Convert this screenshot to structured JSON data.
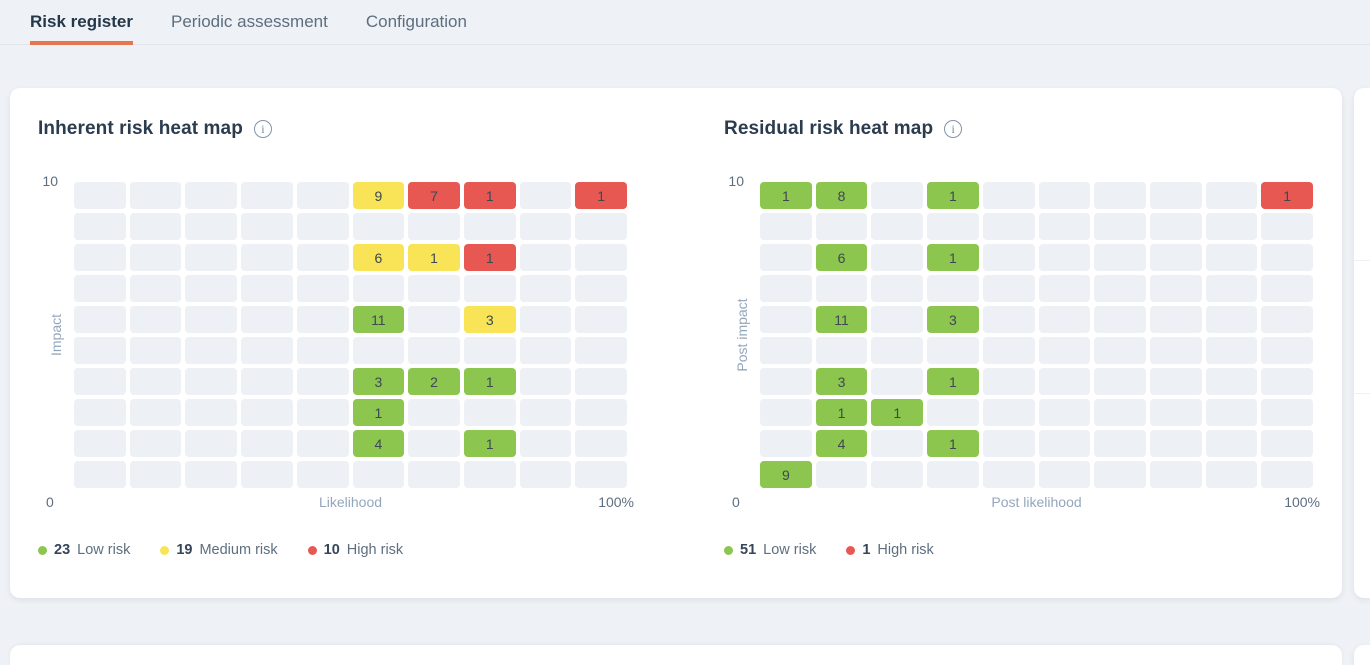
{
  "tabs": [
    {
      "label": "Risk register",
      "active": true
    },
    {
      "label": "Periodic assessment",
      "active": false
    },
    {
      "label": "Configuration",
      "active": false
    }
  ],
  "colors": {
    "accent_orange": "#e8764d",
    "page_bg": "#eef1f5",
    "empty_cell": "#edf0f4",
    "levels": {
      "low": "#8dc64f",
      "medium": "#f8e456",
      "high": "#e75852"
    }
  },
  "info_icon_glyph": "i",
  "chart_data": [
    {
      "type": "heatmap",
      "title": "Inherent risk heat map",
      "xlabel": "Likelihood",
      "ylabel": "Impact",
      "x_axis": {
        "min_label": "0",
        "max_label": "100%"
      },
      "y_axis": {
        "max_label": "10"
      },
      "grid": {
        "rows": 10,
        "cols": 10
      },
      "cells": [
        {
          "row": 1,
          "col": 6,
          "value": 9,
          "level": "medium"
        },
        {
          "row": 1,
          "col": 7,
          "value": 7,
          "level": "high"
        },
        {
          "row": 1,
          "col": 8,
          "value": 1,
          "level": "high"
        },
        {
          "row": 1,
          "col": 10,
          "value": 1,
          "level": "high"
        },
        {
          "row": 3,
          "col": 6,
          "value": 6,
          "level": "medium"
        },
        {
          "row": 3,
          "col": 7,
          "value": 1,
          "level": "medium"
        },
        {
          "row": 3,
          "col": 8,
          "value": 1,
          "level": "high"
        },
        {
          "row": 5,
          "col": 6,
          "value": 11,
          "level": "low"
        },
        {
          "row": 5,
          "col": 8,
          "value": 3,
          "level": "medium"
        },
        {
          "row": 7,
          "col": 6,
          "value": 3,
          "level": "low"
        },
        {
          "row": 7,
          "col": 7,
          "value": 2,
          "level": "low"
        },
        {
          "row": 7,
          "col": 8,
          "value": 1,
          "level": "low"
        },
        {
          "row": 8,
          "col": 6,
          "value": 1,
          "level": "low"
        },
        {
          "row": 9,
          "col": 6,
          "value": 4,
          "level": "low"
        },
        {
          "row": 9,
          "col": 8,
          "value": 1,
          "level": "low"
        }
      ],
      "legend": [
        {
          "count": "23",
          "label": "Low risk",
          "level": "low"
        },
        {
          "count": "19",
          "label": "Medium risk",
          "level": "medium"
        },
        {
          "count": "10",
          "label": "High risk",
          "level": "high"
        }
      ]
    },
    {
      "type": "heatmap",
      "title": "Residual risk heat map",
      "xlabel": "Post likelihood",
      "ylabel": "Post impact",
      "x_axis": {
        "min_label": "0",
        "max_label": "100%"
      },
      "y_axis": {
        "max_label": "10"
      },
      "grid": {
        "rows": 10,
        "cols": 10
      },
      "cells": [
        {
          "row": 1,
          "col": 1,
          "value": 1,
          "level": "low"
        },
        {
          "row": 1,
          "col": 2,
          "value": 8,
          "level": "low"
        },
        {
          "row": 1,
          "col": 4,
          "value": 1,
          "level": "low"
        },
        {
          "row": 1,
          "col": 10,
          "value": 1,
          "level": "high"
        },
        {
          "row": 3,
          "col": 2,
          "value": 6,
          "level": "low"
        },
        {
          "row": 3,
          "col": 4,
          "value": 1,
          "level": "low"
        },
        {
          "row": 5,
          "col": 2,
          "value": 11,
          "level": "low"
        },
        {
          "row": 5,
          "col": 4,
          "value": 3,
          "level": "low"
        },
        {
          "row": 7,
          "col": 2,
          "value": 3,
          "level": "low"
        },
        {
          "row": 7,
          "col": 4,
          "value": 1,
          "level": "low"
        },
        {
          "row": 8,
          "col": 2,
          "value": 1,
          "level": "low"
        },
        {
          "row": 8,
          "col": 3,
          "value": 1,
          "level": "low"
        },
        {
          "row": 9,
          "col": 2,
          "value": 4,
          "level": "low"
        },
        {
          "row": 9,
          "col": 4,
          "value": 1,
          "level": "low"
        },
        {
          "row": 10,
          "col": 1,
          "value": 9,
          "level": "low"
        }
      ],
      "legend": [
        {
          "count": "51",
          "label": "Low risk",
          "level": "low"
        },
        {
          "count": "1",
          "label": "High risk",
          "level": "high"
        }
      ]
    }
  ]
}
